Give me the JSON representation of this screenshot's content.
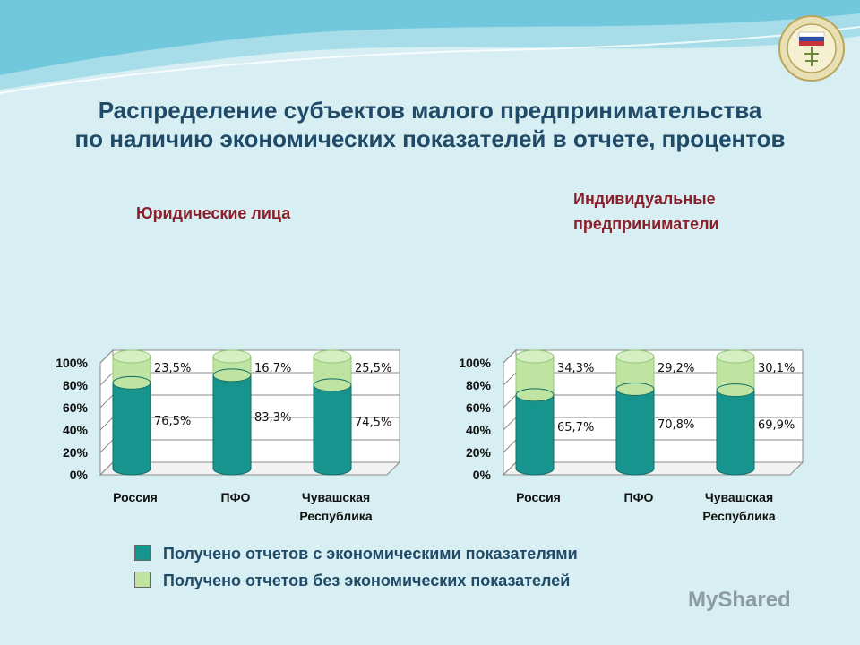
{
  "title": {
    "line1": "Распределение субъектов малого предпринимательства",
    "line2": "по наличию экономических показателей в отчете, процентов"
  },
  "subtitles": {
    "left": "Юридические лица",
    "right": "Индивидуальные предприниматели"
  },
  "legend": [
    {
      "label": "Получено отчетов с экономическими показателями",
      "color": "#17948d"
    },
    {
      "label": "Получено отчетов без экономических показателей",
      "color": "#bfe3a0"
    }
  ],
  "watermark": {
    "text": "MyShared"
  },
  "colors": {
    "teal": "#17948d",
    "teal_dark": "#0e6e69",
    "lightgreen": "#bfe3a0",
    "lightgreen_dark": "#96c97a"
  },
  "chart_data": [
    {
      "type": "bar",
      "stacked": true,
      "categories": [
        "Россия",
        "ПФО",
        "Чувашская Республика"
      ],
      "category_lines": [
        [
          "Россия"
        ],
        [
          "ПФО"
        ],
        [
          "Чувашская",
          "Республика"
        ]
      ],
      "series": [
        {
          "name": "Получено отчетов с экономическими показателями",
          "values": [
            76.5,
            83.3,
            74.5
          ],
          "labels": [
            "76,5%",
            "83,3%",
            "74,5%"
          ]
        },
        {
          "name": "Получено отчетов без экономических показателей",
          "values": [
            23.5,
            16.7,
            25.5
          ],
          "labels": [
            "23,5%",
            "16,7%",
            "25,5%"
          ]
        }
      ],
      "yticks": [
        "0%",
        "20%",
        "40%",
        "60%",
        "80%",
        "100%"
      ],
      "ylim": [
        0,
        100
      ],
      "title": "Юридические лица"
    },
    {
      "type": "bar",
      "stacked": true,
      "categories": [
        "Россия",
        "ПФО",
        "Чувашская Республика"
      ],
      "category_lines": [
        [
          "Россия"
        ],
        [
          "ПФО"
        ],
        [
          "Чувашская",
          "Республика"
        ]
      ],
      "series": [
        {
          "name": "Получено отчетов с экономическими показателями",
          "values": [
            65.7,
            70.8,
            69.9
          ],
          "labels": [
            "65,7%",
            "70,8%",
            "69,9%"
          ]
        },
        {
          "name": "Получено отчетов без экономических показателей",
          "values": [
            34.3,
            29.2,
            30.1
          ],
          "labels": [
            "34,3%",
            "29,2%",
            "30,1%"
          ]
        }
      ],
      "yticks": [
        "0%",
        "20%",
        "40%",
        "60%",
        "80%",
        "100%"
      ],
      "ylim": [
        0,
        100
      ],
      "title": "Индивидуальные предприниматели"
    }
  ]
}
